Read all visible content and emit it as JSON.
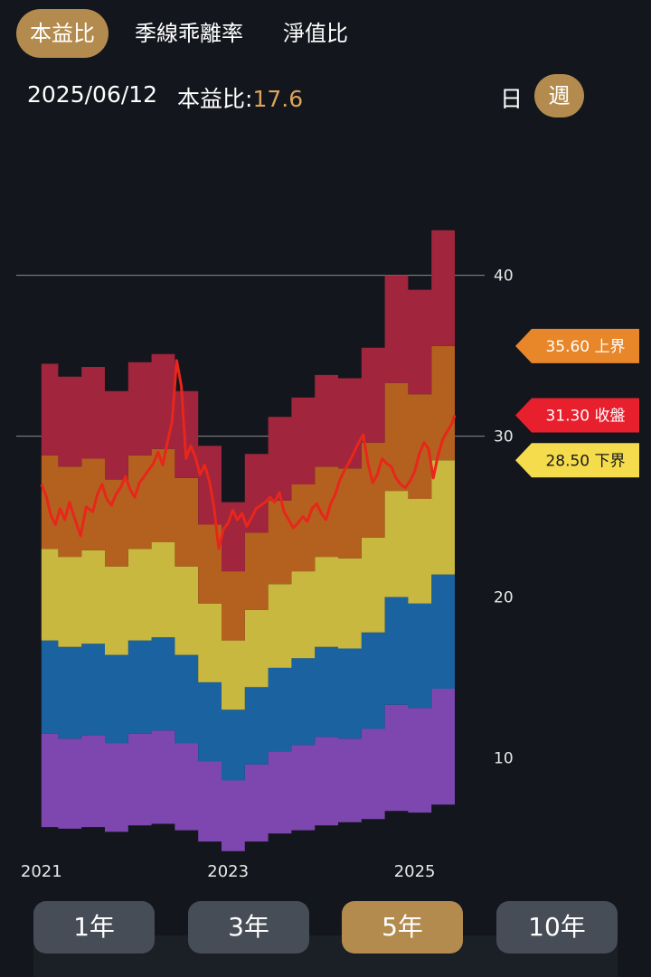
{
  "tabs": [
    {
      "label": "本益比",
      "active": true
    },
    {
      "label": "季線乖離率",
      "active": false
    },
    {
      "label": "淨值比",
      "active": false
    }
  ],
  "info": {
    "date": "2025/06/12",
    "metric_label": "本益比:",
    "metric_value": "17.6",
    "period_day": "日",
    "period_week": "週"
  },
  "ranges": [
    {
      "label": "1年",
      "active": false
    },
    {
      "label": "3年",
      "active": false
    },
    {
      "label": "5年",
      "active": true
    },
    {
      "label": "10年",
      "active": false
    }
  ],
  "colors": {
    "accent": "#b48b4e",
    "band_purple": "#7e47b0",
    "band_blue": "#1a62a0",
    "band_yellow": "#c8b840",
    "band_orange": "#b4611f",
    "band_crimson": "#a0253d",
    "price_line": "#e8261b",
    "upper_tag": "#e8862a",
    "close_tag": "#e8202e",
    "lower_tag": "#f5dc4c"
  },
  "chart_data": {
    "type": "area",
    "y_axis": {
      "ticks": [
        10,
        20,
        30,
        40
      ],
      "range": [
        4.3,
        47
      ],
      "gridlines": [
        30,
        40
      ]
    },
    "x_axis": {
      "range": [
        2020.75,
        2025.75
      ],
      "tick_labels": [
        "2021",
        "2023",
        "2025"
      ],
      "tick_values": [
        2021,
        2023,
        2025
      ]
    },
    "band_x": [
      2021.0,
      2021.18,
      2021.43,
      2021.68,
      2021.93,
      2022.18,
      2022.43,
      2022.68,
      2022.93,
      2023.18,
      2023.43,
      2023.68,
      2023.93,
      2024.18,
      2024.43,
      2024.68,
      2024.93,
      2025.18
    ],
    "band_x_end": 2025.43,
    "band_boundaries": [
      [
        5.7,
        5.6,
        5.7,
        5.4,
        5.8,
        5.9,
        5.5,
        4.8,
        4.2,
        4.8,
        5.3,
        5.5,
        5.8,
        6.0,
        6.2,
        6.7,
        6.6,
        7.1
      ],
      [
        11.5,
        11.2,
        11.4,
        10.9,
        11.5,
        11.7,
        10.9,
        9.8,
        8.6,
        9.6,
        10.4,
        10.8,
        11.3,
        11.2,
        11.8,
        13.3,
        13.1,
        14.3
      ],
      [
        17.3,
        16.9,
        17.1,
        16.4,
        17.3,
        17.5,
        16.4,
        14.7,
        13.0,
        14.4,
        15.6,
        16.2,
        16.9,
        16.8,
        17.8,
        20.0,
        19.6,
        21.4
      ],
      [
        23.0,
        22.5,
        22.9,
        21.9,
        23.0,
        23.4,
        21.9,
        19.6,
        17.3,
        19.2,
        20.8,
        21.6,
        22.5,
        22.4,
        23.7,
        26.6,
        26.1,
        28.5
      ],
      [
        28.8,
        28.1,
        28.6,
        27.3,
        28.8,
        29.2,
        27.4,
        24.5,
        21.6,
        24.0,
        26.0,
        27.0,
        28.1,
        28.0,
        29.6,
        33.3,
        32.6,
        35.6
      ],
      [
        34.5,
        33.7,
        34.3,
        32.8,
        34.6,
        35.1,
        32.8,
        29.4,
        25.9,
        28.9,
        31.2,
        32.4,
        33.8,
        33.6,
        35.5,
        40.0,
        39.1,
        42.8
      ]
    ],
    "band_names": [
      "purple",
      "blue",
      "yellow",
      "orange",
      "crimson"
    ],
    "price_series": [
      [
        2021.0,
        27.0
      ],
      [
        2021.05,
        26.3
      ],
      [
        2021.1,
        25.1
      ],
      [
        2021.15,
        24.5
      ],
      [
        2021.2,
        25.5
      ],
      [
        2021.25,
        24.8
      ],
      [
        2021.3,
        25.9
      ],
      [
        2021.35,
        25.0
      ],
      [
        2021.42,
        23.8
      ],
      [
        2021.48,
        25.6
      ],
      [
        2021.55,
        25.3
      ],
      [
        2021.6,
        26.4
      ],
      [
        2021.65,
        27.0
      ],
      [
        2021.7,
        26.1
      ],
      [
        2021.75,
        25.7
      ],
      [
        2021.8,
        26.4
      ],
      [
        2021.85,
        26.8
      ],
      [
        2021.9,
        27.5
      ],
      [
        2021.95,
        26.7
      ],
      [
        2022.0,
        26.2
      ],
      [
        2022.05,
        27.1
      ],
      [
        2022.1,
        27.5
      ],
      [
        2022.15,
        27.9
      ],
      [
        2022.2,
        28.3
      ],
      [
        2022.25,
        29.0
      ],
      [
        2022.3,
        28.2
      ],
      [
        2022.35,
        29.6
      ],
      [
        2022.4,
        30.9
      ],
      [
        2022.45,
        34.7
      ],
      [
        2022.5,
        33.1
      ],
      [
        2022.55,
        28.6
      ],
      [
        2022.6,
        29.4
      ],
      [
        2022.65,
        28.7
      ],
      [
        2022.7,
        27.6
      ],
      [
        2022.75,
        28.2
      ],
      [
        2022.8,
        27.2
      ],
      [
        2022.85,
        25.6
      ],
      [
        2022.9,
        23.0
      ],
      [
        2022.95,
        24.2
      ],
      [
        2023.0,
        24.6
      ],
      [
        2023.05,
        25.4
      ],
      [
        2023.1,
        24.8
      ],
      [
        2023.15,
        25.2
      ],
      [
        2023.2,
        24.4
      ],
      [
        2023.25,
        24.9
      ],
      [
        2023.3,
        25.5
      ],
      [
        2023.35,
        25.7
      ],
      [
        2023.4,
        25.9
      ],
      [
        2023.45,
        26.2
      ],
      [
        2023.5,
        25.9
      ],
      [
        2023.55,
        26.5
      ],
      [
        2023.6,
        25.3
      ],
      [
        2023.65,
        24.8
      ],
      [
        2023.7,
        24.3
      ],
      [
        2023.75,
        24.6
      ],
      [
        2023.8,
        25.0
      ],
      [
        2023.85,
        24.7
      ],
      [
        2023.9,
        25.5
      ],
      [
        2023.95,
        25.8
      ],
      [
        2024.0,
        25.2
      ],
      [
        2024.05,
        24.8
      ],
      [
        2024.1,
        25.8
      ],
      [
        2024.15,
        26.4
      ],
      [
        2024.2,
        27.3
      ],
      [
        2024.25,
        27.9
      ],
      [
        2024.3,
        28.4
      ],
      [
        2024.35,
        29.0
      ],
      [
        2024.4,
        29.6
      ],
      [
        2024.45,
        30.1
      ],
      [
        2024.5,
        28.3
      ],
      [
        2024.55,
        27.1
      ],
      [
        2024.6,
        27.6
      ],
      [
        2024.65,
        28.6
      ],
      [
        2024.7,
        28.3
      ],
      [
        2024.75,
        28.1
      ],
      [
        2024.8,
        27.4
      ],
      [
        2024.85,
        27.0
      ],
      [
        2024.9,
        26.8
      ],
      [
        2024.95,
        27.2
      ],
      [
        2025.0,
        27.8
      ],
      [
        2025.05,
        28.9
      ],
      [
        2025.1,
        29.6
      ],
      [
        2025.15,
        29.2
      ],
      [
        2025.2,
        27.4
      ],
      [
        2025.25,
        28.8
      ],
      [
        2025.3,
        29.8
      ],
      [
        2025.35,
        30.3
      ],
      [
        2025.4,
        30.8
      ],
      [
        2025.43,
        31.3
      ]
    ],
    "tags": [
      {
        "text": "35.60 上界",
        "value": 35.6,
        "color_key": "upper_tag",
        "text_color": "#ffffff"
      },
      {
        "text": "31.30 收盤",
        "value": 31.3,
        "color_key": "close_tag",
        "text_color": "#ffffff"
      },
      {
        "text": "28.50 下界",
        "value": 28.5,
        "color_key": "lower_tag",
        "text_color": "#1a1a1a"
      }
    ]
  }
}
